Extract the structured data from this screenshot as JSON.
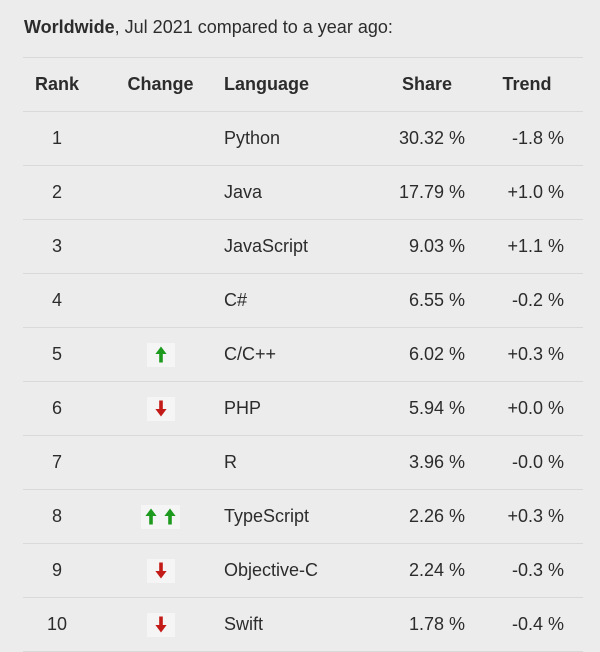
{
  "title_parts": {
    "region": "Worldwide",
    "rest": ", Jul 2021 compared to a year ago:"
  },
  "chart_data": {
    "type": "table",
    "title": "Worldwide, Jul 2021 compared to a year ago:",
    "columns": [
      "Rank",
      "Change",
      "Language",
      "Share",
      "Trend"
    ],
    "rows": [
      [
        "1",
        "",
        "Python",
        "30.32 %",
        "-1.8 %"
      ],
      [
        "2",
        "",
        "Java",
        "17.79 %",
        "+1.0 %"
      ],
      [
        "3",
        "",
        "JavaScript",
        "9.03 %",
        "+1.1 %"
      ],
      [
        "4",
        "",
        "C#",
        "6.55 %",
        "-0.2 %"
      ],
      [
        "5",
        "up",
        "C/C++",
        "6.02 %",
        "+0.3 %"
      ],
      [
        "6",
        "down",
        "PHP",
        "5.94 %",
        "+0.0 %"
      ],
      [
        "7",
        "",
        "R",
        "3.96 %",
        "-0.0 %"
      ],
      [
        "8",
        "up-up",
        "TypeScript",
        "2.26 %",
        "+0.3 %"
      ],
      [
        "9",
        "down",
        "Objective-C",
        "2.24 %",
        "-0.3 %"
      ],
      [
        "10",
        "down",
        "Swift",
        "1.78 %",
        "-0.4 %"
      ]
    ]
  },
  "icons": {
    "up": "green-up-arrow-icon",
    "down": "red-down-arrow-icon",
    "up-up": "double-green-up-arrow-icon"
  },
  "colors": {
    "background": "#ececec",
    "text": "#2c2c2c",
    "divider": "#d9d9d9",
    "up_arrow": "#1e9b1e",
    "down_arrow": "#c31b17",
    "icon_background": "#f5f5f5"
  }
}
